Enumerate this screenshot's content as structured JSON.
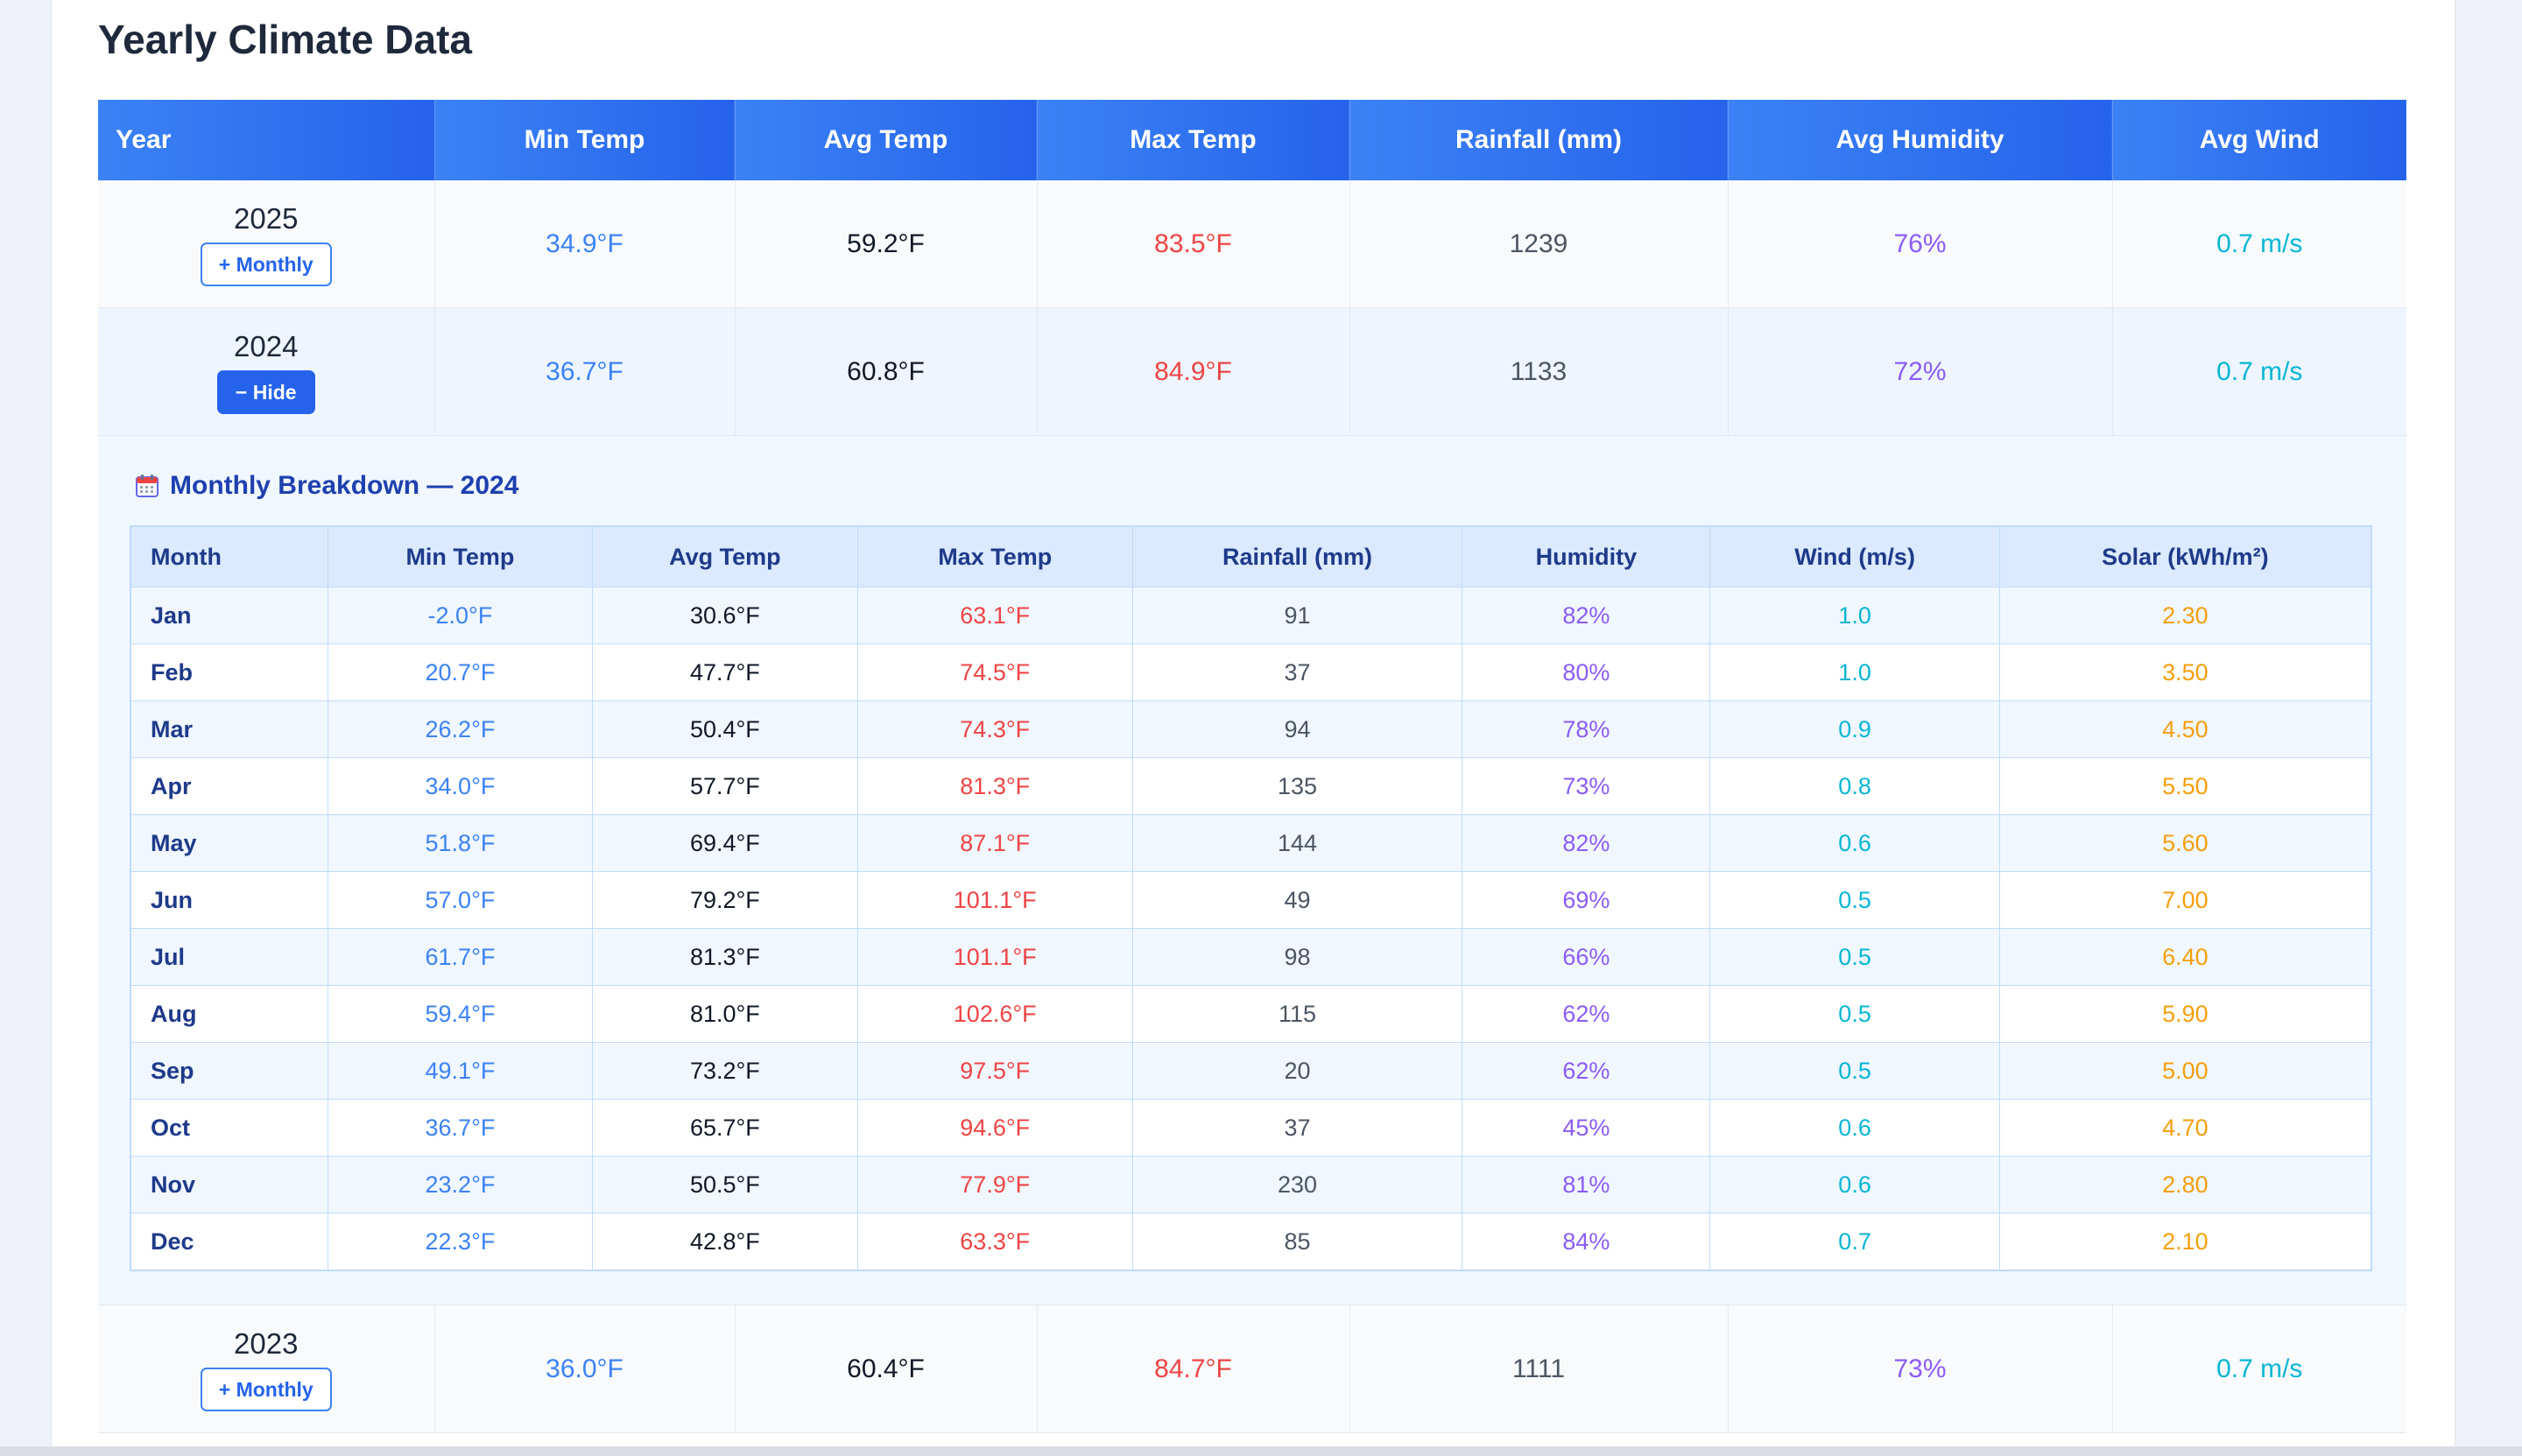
{
  "page": {
    "title": "Yearly Climate Data"
  },
  "yearly": {
    "headers": [
      "Year",
      "Min Temp",
      "Avg Temp",
      "Max Temp",
      "Rainfall (mm)",
      "Avg Humidity",
      "Avg Wind"
    ],
    "rows": [
      {
        "year": "2025",
        "min": "34.9°F",
        "avg": "59.2°F",
        "max": "83.5°F",
        "rain": "1239",
        "hum": "76%",
        "wind": "0.7 m/s",
        "toggle": "+ Monthly",
        "expanded": false
      },
      {
        "year": "2024",
        "min": "36.7°F",
        "avg": "60.8°F",
        "max": "84.9°F",
        "rain": "1133",
        "hum": "72%",
        "wind": "0.7 m/s",
        "toggle": "− Hide",
        "expanded": true
      },
      {
        "year": "2023",
        "min": "36.0°F",
        "avg": "60.4°F",
        "max": "84.7°F",
        "rain": "1111",
        "hum": "73%",
        "wind": "0.7 m/s",
        "toggle": "+ Monthly",
        "expanded": false
      }
    ]
  },
  "monthly": {
    "title": "Monthly Breakdown — 2024",
    "icon": "calendar-icon",
    "headers": [
      "Month",
      "Min Temp",
      "Avg Temp",
      "Max Temp",
      "Rainfall (mm)",
      "Humidity",
      "Wind (m/s)",
      "Solar (kWh/m²)"
    ],
    "rows": [
      {
        "month": "Jan",
        "min": "-2.0°F",
        "avg": "30.6°F",
        "max": "63.1°F",
        "rain": "91",
        "hum": "82%",
        "wind": "1.0",
        "solar": "2.30"
      },
      {
        "month": "Feb",
        "min": "20.7°F",
        "avg": "47.7°F",
        "max": "74.5°F",
        "rain": "37",
        "hum": "80%",
        "wind": "1.0",
        "solar": "3.50"
      },
      {
        "month": "Mar",
        "min": "26.2°F",
        "avg": "50.4°F",
        "max": "74.3°F",
        "rain": "94",
        "hum": "78%",
        "wind": "0.9",
        "solar": "4.50"
      },
      {
        "month": "Apr",
        "min": "34.0°F",
        "avg": "57.7°F",
        "max": "81.3°F",
        "rain": "135",
        "hum": "73%",
        "wind": "0.8",
        "solar": "5.50"
      },
      {
        "month": "May",
        "min": "51.8°F",
        "avg": "69.4°F",
        "max": "87.1°F",
        "rain": "144",
        "hum": "82%",
        "wind": "0.6",
        "solar": "5.60"
      },
      {
        "month": "Jun",
        "min": "57.0°F",
        "avg": "79.2°F",
        "max": "101.1°F",
        "rain": "49",
        "hum": "69%",
        "wind": "0.5",
        "solar": "7.00"
      },
      {
        "month": "Jul",
        "min": "61.7°F",
        "avg": "81.3°F",
        "max": "101.1°F",
        "rain": "98",
        "hum": "66%",
        "wind": "0.5",
        "solar": "6.40"
      },
      {
        "month": "Aug",
        "min": "59.4°F",
        "avg": "81.0°F",
        "max": "102.6°F",
        "rain": "115",
        "hum": "62%",
        "wind": "0.5",
        "solar": "5.90"
      },
      {
        "month": "Sep",
        "min": "49.1°F",
        "avg": "73.2°F",
        "max": "97.5°F",
        "rain": "20",
        "hum": "62%",
        "wind": "0.5",
        "solar": "5.00"
      },
      {
        "month": "Oct",
        "min": "36.7°F",
        "avg": "65.7°F",
        "max": "94.6°F",
        "rain": "37",
        "hum": "45%",
        "wind": "0.6",
        "solar": "4.70"
      },
      {
        "month": "Nov",
        "min": "23.2°F",
        "avg": "50.5°F",
        "max": "77.9°F",
        "rain": "230",
        "hum": "81%",
        "wind": "0.6",
        "solar": "2.80"
      },
      {
        "month": "Dec",
        "min": "22.3°F",
        "avg": "42.8°F",
        "max": "63.3°F",
        "rain": "85",
        "hum": "84%",
        "wind": "0.7",
        "solar": "2.10"
      }
    ]
  },
  "colors": {
    "header": "#2563eb",
    "min": "#3b82f6",
    "max": "#ef4444",
    "humidity": "#8b5cf6",
    "wind": "#06b6d4",
    "solar": "#f59e0b"
  }
}
